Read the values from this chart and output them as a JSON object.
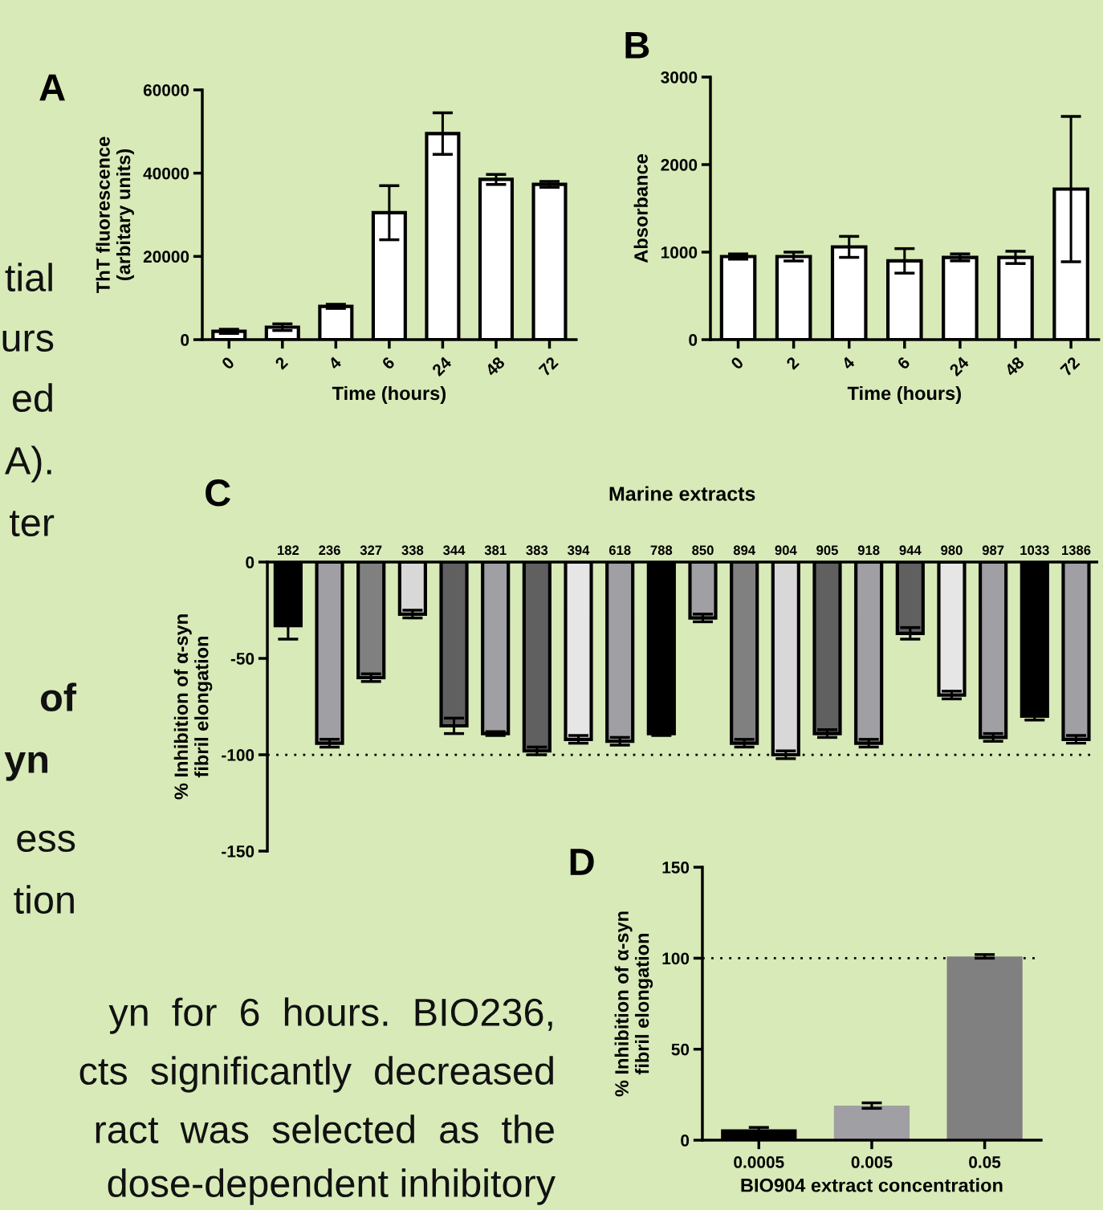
{
  "chart_data": [
    {
      "type": "bar",
      "annotations": [
        "A"
      ],
      "xlabel": "Time (hours)",
      "ylabel": "ThT fluorescence\n(arbitary units)",
      "categories": [
        "0",
        "2",
        "4",
        "6",
        "24",
        "48",
        "72"
      ],
      "values": [
        2000,
        3000,
        8000,
        30500,
        49500,
        38500,
        37300
      ],
      "errors": [
        500,
        800,
        500,
        6500,
        5000,
        1200,
        700
      ],
      "color": "#ffffff",
      "ylim": [
        0,
        60000
      ],
      "yticks": [
        0,
        20000,
        40000,
        60000
      ],
      "grid": false,
      "legend": false
    },
    {
      "type": "bar",
      "annotations": [
        "B"
      ],
      "xlabel": "Time (hours)",
      "ylabel": "Absorbance",
      "categories": [
        "0",
        "2",
        "4",
        "6",
        "24",
        "48",
        "72"
      ],
      "values": [
        950,
        950,
        1060,
        900,
        940,
        940,
        1720
      ],
      "errors": [
        30,
        50,
        120,
        140,
        40,
        70,
        830
      ],
      "color": "#ffffff",
      "ylim": [
        0,
        3000
      ],
      "yticks": [
        0,
        1000,
        2000,
        3000
      ],
      "grid": false,
      "legend": false
    },
    {
      "type": "bar",
      "annotations": [
        "C"
      ],
      "title": "Marine extracts",
      "ylabel": "% Inhibition of α-syn\nfibril elongation",
      "categories": [
        "182",
        "236",
        "327",
        "338",
        "344",
        "381",
        "383",
        "394",
        "618",
        "788",
        "850",
        "894",
        "904",
        "905",
        "918",
        "944",
        "980",
        "987",
        "1033",
        "1386"
      ],
      "values": [
        -33,
        -94,
        -60,
        -27,
        -85,
        -89,
        -98,
        -92,
        -93,
        -89,
        -29,
        -94,
        -100,
        -89,
        -94,
        -37,
        -69,
        -91,
        -80,
        -92
      ],
      "errors": [
        7,
        2,
        2,
        2,
        4,
        1,
        2,
        2,
        2,
        1,
        2,
        2,
        2,
        2,
        2,
        3,
        2,
        2,
        2,
        2
      ],
      "colors": [
        "#000000",
        "#a09fa3",
        "#808080",
        "#d8d8d8",
        "#606060",
        "#a09fa3",
        "#606060",
        "#e6e6e6",
        "#a09fa3",
        "#000000",
        "#a09fa3",
        "#808080",
        "#d8d8d8",
        "#606060",
        "#a09fa3",
        "#606060",
        "#e6e6e6",
        "#a09fa3",
        "#000000",
        "#a09fa3"
      ],
      "ylim": [
        -150,
        0
      ],
      "yticks": [
        0,
        -50,
        -100,
        -150
      ],
      "ref_lines": [
        {
          "axis": "y",
          "value": -100,
          "line_style": "dotted"
        }
      ],
      "grid": false,
      "legend": false
    },
    {
      "type": "bar",
      "annotations": [
        "D"
      ],
      "xlabel": "BIO904 extract concentration",
      "ylabel": "% Inhibition of α-syn\nfibril elongation",
      "categories": [
        "0.0005",
        "0.005",
        "0.05"
      ],
      "values": [
        6,
        19,
        101
      ],
      "errors": [
        1,
        1.5,
        1
      ],
      "colors": [
        "#000000",
        "#a09fa3",
        "#808080"
      ],
      "ylim": [
        0,
        150
      ],
      "yticks": [
        0,
        50,
        100,
        150
      ],
      "ref_lines": [
        {
          "axis": "y",
          "value": 100,
          "line_style": "dotted"
        }
      ],
      "grid": false,
      "legend": false
    },
    {
      "type": "other",
      "annotations": [
        "tial",
        "urs",
        "ed",
        "A).",
        "ter",
        "of",
        "yn",
        "ess",
        "tion",
        "yn  for  6  hours.  BIO236,",
        "cts  significantly  decreased",
        "ract  was  selected  as  the",
        "dose-dependent inhibitory"
      ]
    }
  ]
}
